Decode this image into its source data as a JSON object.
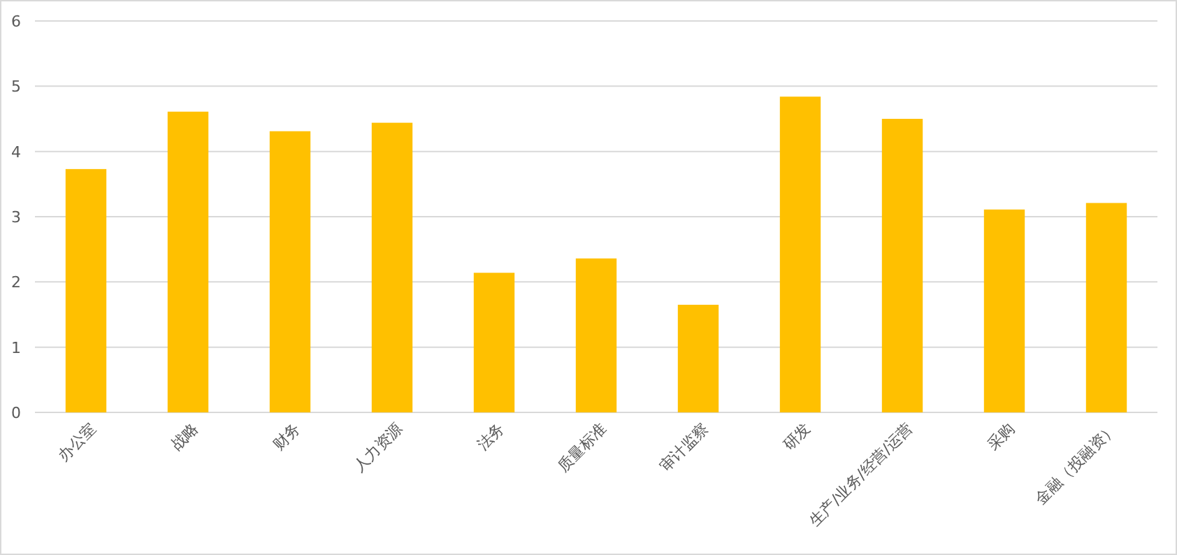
{
  "chart_data": {
    "type": "bar",
    "categories": [
      "办公室",
      "战略",
      "财务",
      "人力资源",
      "法务",
      "质量标准",
      "审计监察",
      "研发",
      "生产/业务/经营/运营",
      "采购",
      "金融（投融资）"
    ],
    "values": [
      3.73,
      4.61,
      4.31,
      4.44,
      2.14,
      2.36,
      1.65,
      4.84,
      4.5,
      3.11,
      3.21
    ],
    "color": "#ffc000",
    "ylim": [
      0,
      6
    ],
    "yticks": [
      0,
      1,
      2,
      3,
      4,
      5,
      6
    ],
    "grid": "y"
  }
}
